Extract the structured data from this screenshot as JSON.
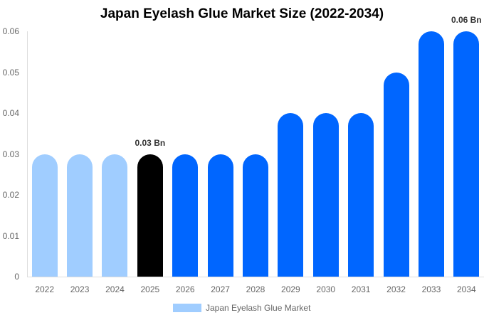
{
  "chart_data": {
    "type": "bar",
    "title": "Japan Eyelash Glue Market Size (2022-2034)",
    "xlabel": "",
    "ylabel": "",
    "ylim": [
      0,
      0.06
    ],
    "yticks": [
      "0",
      "0.01",
      "0.02",
      "0.03",
      "0.04",
      "0.05",
      "0.06"
    ],
    "categories": [
      "2022",
      "2023",
      "2024",
      "2025",
      "2026",
      "2027",
      "2028",
      "2029",
      "2030",
      "2031",
      "2032",
      "2033",
      "2034"
    ],
    "series": [
      {
        "name": "Japan Eyelash Glue Market",
        "values": [
          0.03,
          0.03,
          0.03,
          0.03,
          0.03,
          0.03,
          0.03,
          0.04,
          0.04,
          0.04,
          0.05,
          0.06,
          0.06
        ]
      }
    ],
    "bar_colors": [
      "#a0cdff",
      "#a0cdff",
      "#a0cdff",
      "#000000",
      "#0066ff",
      "#0066ff",
      "#0066ff",
      "#0066ff",
      "#0066ff",
      "#0066ff",
      "#0066ff",
      "#0066ff",
      "#0066ff"
    ],
    "annotations": [
      {
        "category": "2025",
        "text": "0.03 Bn"
      },
      {
        "category": "2034",
        "text": "0.06 Bn"
      }
    ],
    "legend": {
      "position": "bottom",
      "entries": [
        "Japan Eyelash Glue Market"
      ],
      "swatch_color": "#a0cdff"
    },
    "grid": false
  }
}
